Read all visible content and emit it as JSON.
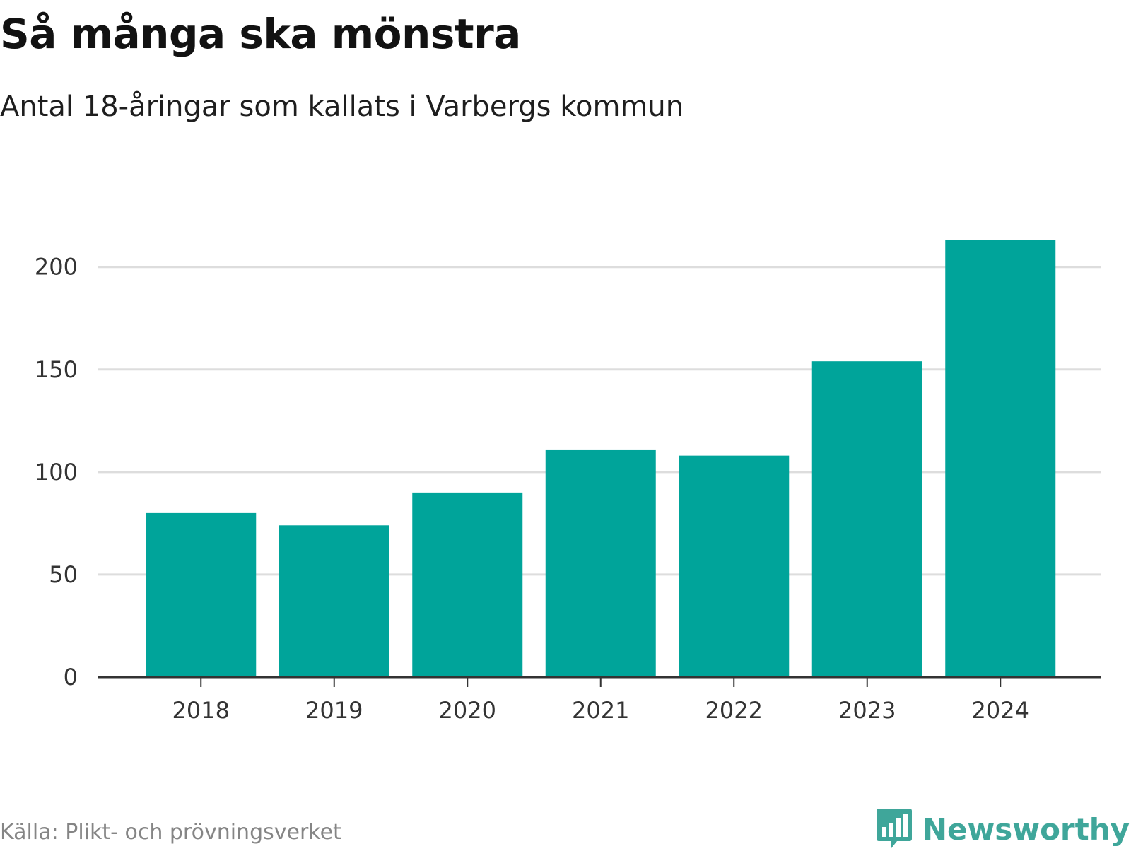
{
  "header": {
    "title": "Så många ska mönstra",
    "subtitle": "Antal 18-åringar som kallats i Varbergs kommun"
  },
  "footer": {
    "source": "Källa: Plikt- och prövningsverket",
    "brand": "Newsworthy",
    "brand_icon": "bar-chart-bubble-icon"
  },
  "colors": {
    "bar": "#00a49a",
    "brand": "#3fa69a",
    "grid": "#dddddd",
    "axis": "#333333"
  },
  "chart_data": {
    "type": "bar",
    "title": "Så många ska mönstra",
    "subtitle": "Antal 18-åringar som kallats i Varbergs kommun",
    "categories": [
      "2018",
      "2019",
      "2020",
      "2021",
      "2022",
      "2023",
      "2024"
    ],
    "values": [
      80,
      74,
      90,
      111,
      108,
      154,
      213
    ],
    "xlabel": "",
    "ylabel": "",
    "ylim": [
      0,
      213
    ],
    "yticks": [
      0,
      50,
      100,
      150,
      200
    ],
    "grid": true,
    "legend": "none"
  }
}
